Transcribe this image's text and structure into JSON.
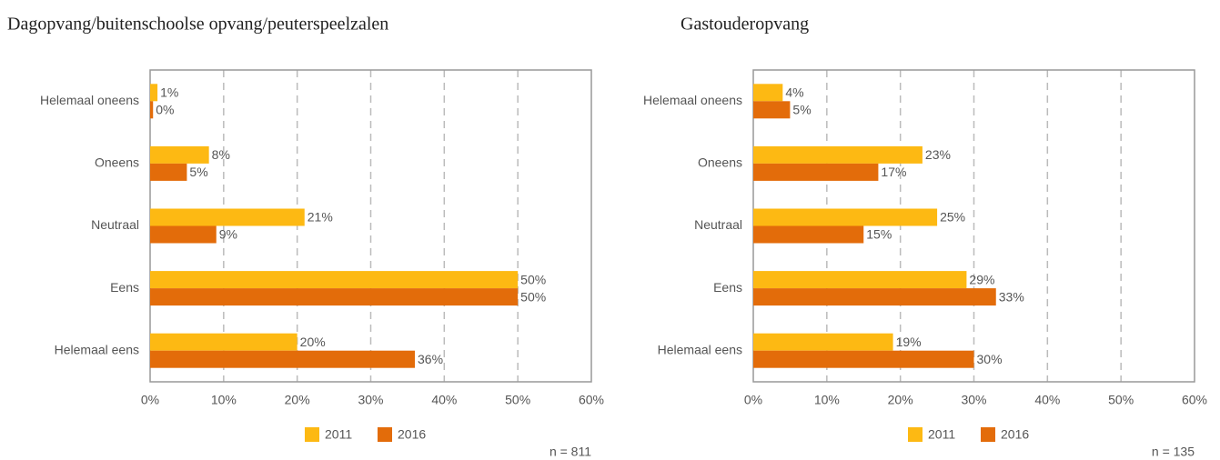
{
  "chart_data": [
    {
      "type": "bar",
      "orientation": "horizontal",
      "title": "Dagopvang/buitenschoolse opvang/peuterspeelzalen",
      "categories": [
        "Helemaal oneens",
        "Oneens",
        "Neutraal",
        "Eens",
        "Helemaal eens"
      ],
      "series": [
        {
          "name": "2011",
          "color": "#fdb913",
          "values": [
            1,
            8,
            21,
            50,
            20
          ],
          "value_labels": [
            "1%",
            "8%",
            "21%",
            "50%",
            "20%"
          ]
        },
        {
          "name": "2016",
          "color": "#e36c0a",
          "values": [
            0.4,
            5,
            9,
            50,
            36
          ],
          "value_labels": [
            "0%",
            "5%",
            "9%",
            "50%",
            "36%"
          ]
        }
      ],
      "xlim": [
        0,
        60
      ],
      "xticks": [
        {
          "value": 0,
          "label": "0%"
        },
        {
          "value": 10,
          "label": "10%"
        },
        {
          "value": 20,
          "label": "20%"
        },
        {
          "value": 30,
          "label": "30%"
        },
        {
          "value": 40,
          "label": "40%"
        },
        {
          "value": 50,
          "label": "50%"
        },
        {
          "value": 60,
          "label": "60%"
        }
      ],
      "grid": true,
      "legend": "bottom",
      "note": "n = 811"
    },
    {
      "type": "bar",
      "orientation": "horizontal",
      "title": "Gastouderopvang",
      "categories": [
        "Helemaal oneens",
        "Oneens",
        "Neutraal",
        "Eens",
        "Helemaal eens"
      ],
      "series": [
        {
          "name": "2011",
          "color": "#fdb913",
          "values": [
            4,
            23,
            25,
            29,
            19
          ],
          "value_labels": [
            "4%",
            "23%",
            "25%",
            "29%",
            "19%"
          ]
        },
        {
          "name": "2016",
          "color": "#e36c0a",
          "values": [
            5,
            17,
            15,
            33,
            30
          ],
          "value_labels": [
            "5%",
            "17%",
            "15%",
            "33%",
            "30%"
          ]
        }
      ],
      "xlim": [
        0,
        60
      ],
      "xticks": [
        {
          "value": 0,
          "label": "0%"
        },
        {
          "value": 10,
          "label": "10%"
        },
        {
          "value": 20,
          "label": "20%"
        },
        {
          "value": 30,
          "label": "30%"
        },
        {
          "value": 40,
          "label": "40%"
        },
        {
          "value": 50,
          "label": "50%"
        },
        {
          "value": 60,
          "label": "60%"
        }
      ],
      "grid": true,
      "legend": "bottom",
      "note": "n = 135"
    }
  ]
}
